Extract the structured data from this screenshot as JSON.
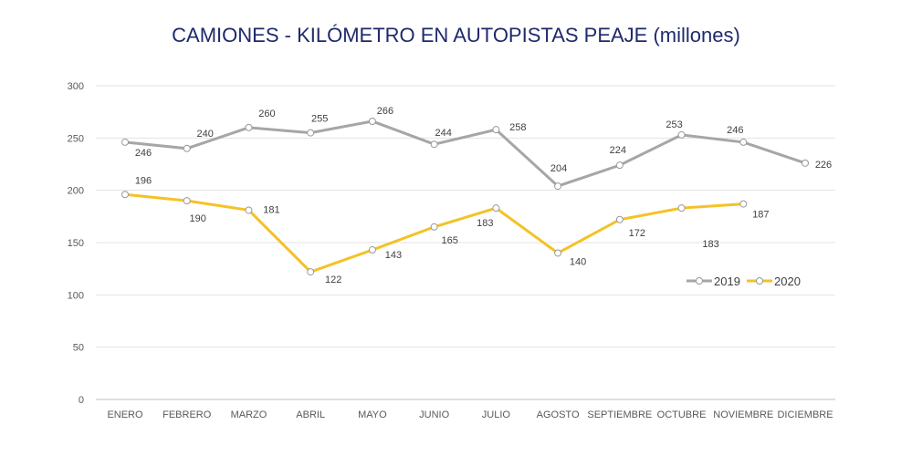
{
  "chart_data": {
    "type": "line",
    "title": "CAMIONES - KILÓMETRO EN AUTOPISTAS PEAJE (millones)",
    "xlabel": "",
    "ylabel": "",
    "categories": [
      "ENERO",
      "FEBRERO",
      "MARZO",
      "ABRIL",
      "MAYO",
      "JUNIO",
      "JULIO",
      "AGOSTO",
      "SEPTIEMBRE",
      "OCTUBRE",
      "NOVIEMBRE",
      "DICIEMBRE"
    ],
    "ylim": [
      0,
      300
    ],
    "yticks": [
      0,
      50,
      100,
      150,
      200,
      250,
      300
    ],
    "grid": true,
    "legend_position": "right",
    "series": [
      {
        "name": "2019",
        "color": "#a6a6a6",
        "values": [
          246,
          240,
          260,
          255,
          266,
          244,
          258,
          204,
          224,
          253,
          246,
          226
        ]
      },
      {
        "name": "2020",
        "color": "#f4c227",
        "values": [
          196,
          190,
          181,
          122,
          143,
          165,
          183,
          140,
          172,
          183,
          187,
          null
        ]
      }
    ]
  }
}
